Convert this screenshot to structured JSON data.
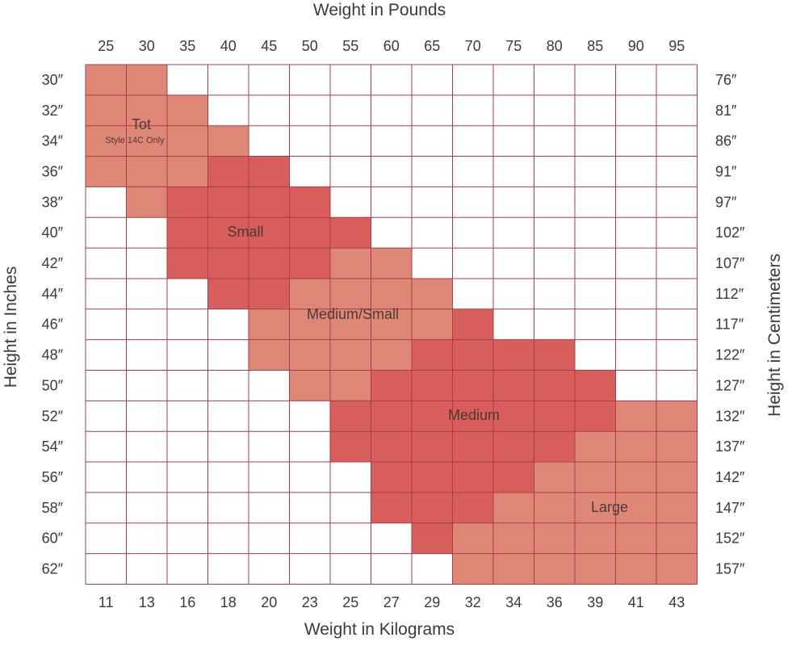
{
  "chart_data": {
    "type": "heatmap",
    "title_top": "Weight in Pounds",
    "title_bottom": "Weight in Kilograms",
    "title_left": "Height in Inches",
    "title_right": "Height in Centimeters",
    "x_pounds": [
      "25",
      "30",
      "35",
      "40",
      "45",
      "50",
      "55",
      "60",
      "65",
      "70",
      "75",
      "80",
      "85",
      "90",
      "95"
    ],
    "x_kilograms": [
      "11",
      "13",
      "16",
      "18",
      "20",
      "23",
      "25",
      "27",
      "29",
      "32",
      "34",
      "36",
      "39",
      "41",
      "43"
    ],
    "y_inches": [
      "30″",
      "32″",
      "34″",
      "36″",
      "38″",
      "40″",
      "42″",
      "44″",
      "46″",
      "48″",
      "50″",
      "52″",
      "54″",
      "56″",
      "58″",
      "60″",
      "62″"
    ],
    "y_centimeters": [
      "76″",
      "81″",
      "86″",
      "91″",
      "97″",
      "102″",
      "107″",
      "112″",
      "117″",
      "122″",
      "127″",
      "132″",
      "137″",
      "142″",
      "147″",
      "152″",
      "157″"
    ],
    "columns": 15,
    "rows": 17,
    "size_codes": {
      "0": "none",
      "1": "Tot",
      "2": "Small",
      "3": "Medium/Small",
      "4": "Medium",
      "5": "Large"
    },
    "grid": [
      [
        1,
        1,
        0,
        0,
        0,
        0,
        0,
        0,
        0,
        0,
        0,
        0,
        0,
        0,
        0
      ],
      [
        1,
        1,
        1,
        0,
        0,
        0,
        0,
        0,
        0,
        0,
        0,
        0,
        0,
        0,
        0
      ],
      [
        1,
        1,
        1,
        1,
        0,
        0,
        0,
        0,
        0,
        0,
        0,
        0,
        0,
        0,
        0
      ],
      [
        1,
        1,
        1,
        2,
        2,
        0,
        0,
        0,
        0,
        0,
        0,
        0,
        0,
        0,
        0
      ],
      [
        0,
        1,
        2,
        2,
        2,
        2,
        0,
        0,
        0,
        0,
        0,
        0,
        0,
        0,
        0
      ],
      [
        0,
        0,
        2,
        2,
        2,
        2,
        2,
        0,
        0,
        0,
        0,
        0,
        0,
        0,
        0
      ],
      [
        0,
        0,
        2,
        2,
        2,
        2,
        3,
        3,
        0,
        0,
        0,
        0,
        0,
        0,
        0
      ],
      [
        0,
        0,
        0,
        2,
        2,
        3,
        3,
        3,
        3,
        0,
        0,
        0,
        0,
        0,
        0
      ],
      [
        0,
        0,
        0,
        0,
        3,
        3,
        3,
        3,
        3,
        4,
        0,
        0,
        0,
        0,
        0
      ],
      [
        0,
        0,
        0,
        0,
        3,
        3,
        3,
        3,
        4,
        4,
        4,
        4,
        0,
        0,
        0
      ],
      [
        0,
        0,
        0,
        0,
        0,
        3,
        3,
        4,
        4,
        4,
        4,
        4,
        4,
        0,
        0
      ],
      [
        0,
        0,
        0,
        0,
        0,
        0,
        4,
        4,
        4,
        4,
        4,
        4,
        4,
        5,
        5
      ],
      [
        0,
        0,
        0,
        0,
        0,
        0,
        4,
        4,
        4,
        4,
        4,
        4,
        5,
        5,
        5
      ],
      [
        0,
        0,
        0,
        0,
        0,
        0,
        0,
        4,
        4,
        4,
        4,
        5,
        5,
        5,
        5
      ],
      [
        0,
        0,
        0,
        0,
        0,
        0,
        0,
        4,
        4,
        4,
        5,
        5,
        5,
        5,
        5
      ],
      [
        0,
        0,
        0,
        0,
        0,
        0,
        0,
        0,
        4,
        5,
        5,
        5,
        5,
        5,
        5
      ],
      [
        0,
        0,
        0,
        0,
        0,
        0,
        0,
        0,
        0,
        5,
        5,
        5,
        5,
        5,
        5
      ]
    ],
    "regions": [
      {
        "name": "Tot",
        "note": "Style 14C Only",
        "color": "#df8776"
      },
      {
        "name": "Small",
        "color": "#d75e5b"
      },
      {
        "name": "Medium/Small",
        "color": "#df8776"
      },
      {
        "name": "Medium",
        "color": "#d75e5b"
      },
      {
        "name": "Large",
        "color": "#df8776"
      }
    ],
    "gridline_color": "#a83c48",
    "empty_color": "#ffffff"
  }
}
